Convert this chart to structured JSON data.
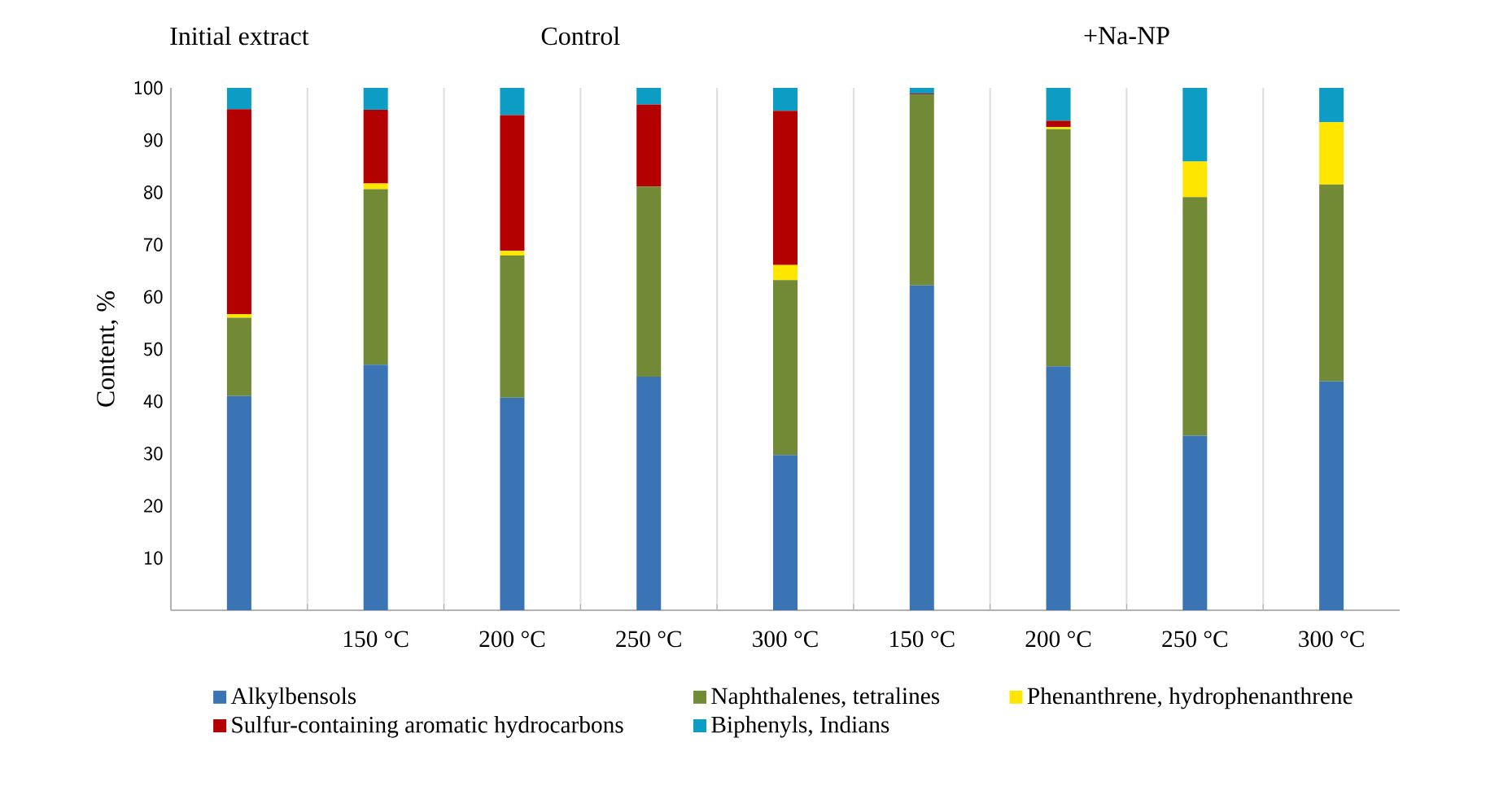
{
  "chart_data": {
    "type": "bar",
    "stacked": true,
    "ylabel": "Content, %",
    "categories": [
      null,
      "150 °C",
      "200 °C",
      "250 °C",
      "300 °C",
      "150 °C",
      "200 °C",
      "250 °C",
      "300 °C"
    ],
    "annotations": [
      "Initial extract",
      "Control",
      "+Na-NP"
    ],
    "series": [
      {
        "name": "Alkylbensols",
        "color": "#3a74b5",
        "values": [
          41,
          47,
          40.7,
          44.7,
          29.7,
          62.2,
          46.7,
          33.4,
          43.8
        ]
      },
      {
        "name": "Naphthalenes, tetralines",
        "color": "#728a36",
        "values": [
          15,
          33.6,
          27.2,
          36.4,
          33.5,
          36.5,
          45.4,
          45.7,
          37.7
        ]
      },
      {
        "name": "Phenanthrene, hydrophenanthrene",
        "color": "#ffe600",
        "values": [
          0.7,
          1.1,
          0.9,
          0,
          2.9,
          0,
          0.4,
          6.8,
          11.9
        ]
      },
      {
        "name": "Sulfur-containing aromatic hydrocarbons",
        "color": "#b30000",
        "values": [
          39.2,
          14.1,
          26.0,
          15.7,
          29.5,
          0.2,
          1.2,
          0,
          0
        ]
      },
      {
        "name": "Biphenyls, Indians",
        "color": "#0c9cc4",
        "values": [
          4.1,
          4.2,
          5.2,
          3.2,
          4.4,
          1.1,
          6.3,
          14.1,
          6.6
        ]
      }
    ],
    "ylim": [
      0,
      100
    ],
    "yticks": [
      10,
      20,
      30,
      40,
      50,
      60,
      70,
      80,
      90,
      100
    ],
    "grid": "x",
    "legend": "bottom"
  }
}
